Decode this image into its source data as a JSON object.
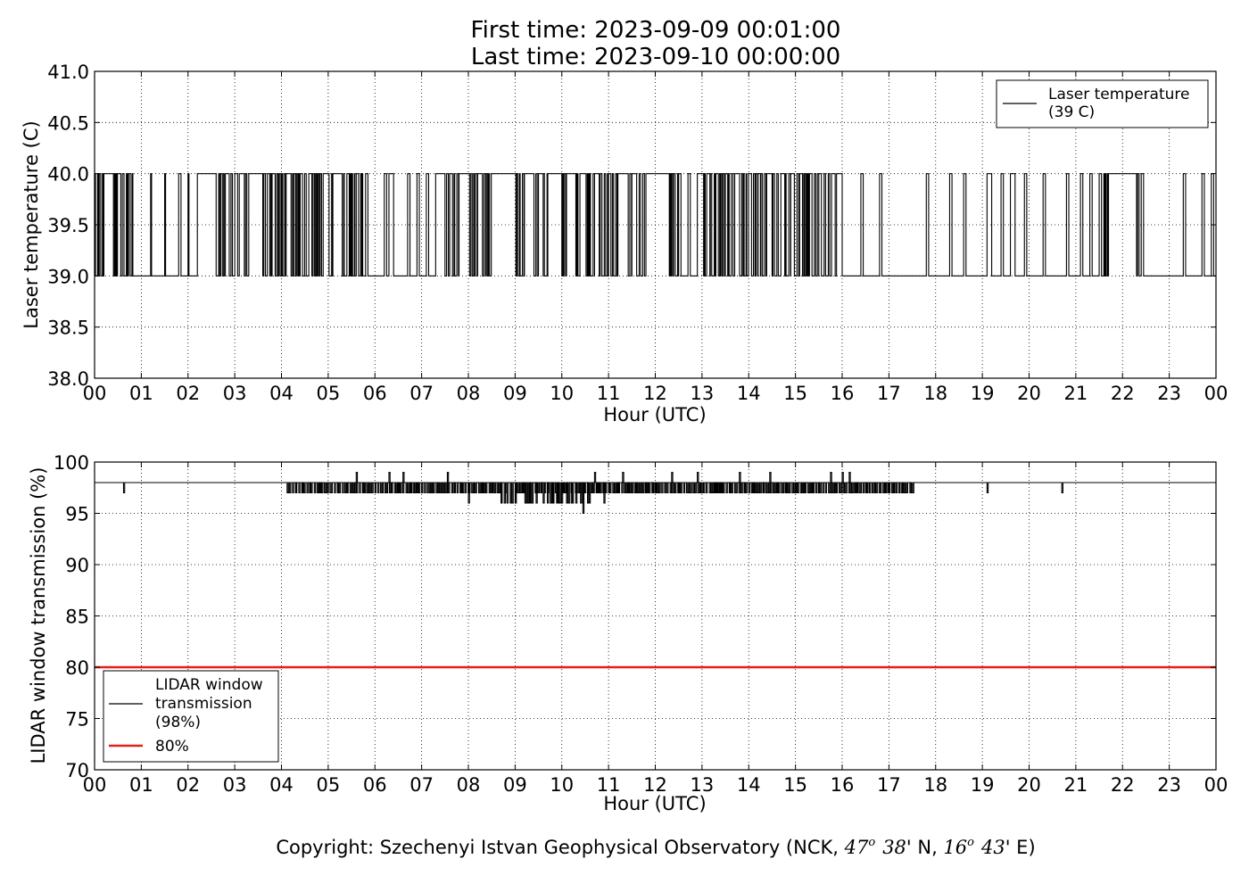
{
  "header": {
    "first_time": "First time: 2023-09-09 00:01:00",
    "last_time": "Last time: 2023-09-10 00:00:00"
  },
  "copyright": {
    "prefix": "Copyright: Szechenyi Istvan Geophysical Observatory (NCK, ",
    "lat_deg": "47",
    "lat_min": "38",
    "lat_suffix": "' N, ",
    "lon_deg": "16",
    "lon_min": "43",
    "lon_suffix": "' E)",
    "degree_mark": "o"
  },
  "chart_data": [
    {
      "type": "line",
      "xlabel": "Hour (UTC)",
      "ylabel": "Laser temperature (C)",
      "xlim": [
        0,
        24
      ],
      "ylim": [
        38.0,
        41.0
      ],
      "x_tick_labels": [
        "00",
        "01",
        "02",
        "03",
        "04",
        "05",
        "06",
        "07",
        "08",
        "09",
        "10",
        "11",
        "12",
        "13",
        "14",
        "15",
        "16",
        "17",
        "18",
        "19",
        "20",
        "21",
        "22",
        "23",
        "00"
      ],
      "y_tick_labels": [
        "38.0",
        "38.5",
        "39.0",
        "39.5",
        "40.0",
        "40.5",
        "41.0"
      ],
      "grid": true,
      "legend_position": "top-right",
      "series": [
        {
          "name": "Laser temperature\n(39 C)",
          "legend_lines": [
            "Laser temperature",
            "(39 C)"
          ],
          "color": "#000000",
          "description_levels": [
            39.0,
            40.0
          ],
          "segments_at_40": [
            [
              0.0,
              0.02
            ],
            [
              0.1,
              0.12
            ],
            [
              0.2,
              0.4
            ],
            [
              0.45,
              0.47
            ],
            [
              0.5,
              0.55
            ],
            [
              0.6,
              0.62
            ],
            [
              0.7,
              0.72
            ],
            [
              0.8,
              0.82
            ],
            [
              1.2,
              1.22
            ],
            [
              1.5,
              1.52
            ],
            [
              1.8,
              1.85
            ],
            [
              2.0,
              2.02
            ],
            [
              2.2,
              2.6
            ],
            [
              2.7,
              2.72
            ],
            [
              2.8,
              2.85
            ],
            [
              3.0,
              3.05
            ],
            [
              3.1,
              3.2
            ],
            [
              3.3,
              3.6
            ],
            [
              3.7,
              3.75
            ],
            [
              3.8,
              3.85
            ],
            [
              4.1,
              4.2
            ],
            [
              4.4,
              4.45
            ],
            [
              4.6,
              4.65
            ],
            [
              4.9,
              5.0
            ],
            [
              5.1,
              5.3
            ],
            [
              5.4,
              5.45
            ],
            [
              5.6,
              5.65
            ],
            [
              5.8,
              5.85
            ],
            [
              6.2,
              6.25
            ],
            [
              6.3,
              6.4
            ],
            [
              6.7,
              6.75
            ],
            [
              6.9,
              6.95
            ],
            [
              7.1,
              7.15
            ],
            [
              7.3,
              7.5
            ],
            [
              7.6,
              7.65
            ],
            [
              7.8,
              8.0
            ],
            [
              8.2,
              8.3
            ],
            [
              8.5,
              9.0
            ],
            [
              9.2,
              9.4
            ],
            [
              9.5,
              9.6
            ],
            [
              9.7,
              10.0
            ],
            [
              10.1,
              10.3
            ],
            [
              10.4,
              10.5
            ],
            [
              10.7,
              10.8
            ],
            [
              11.0,
              11.05
            ],
            [
              11.2,
              11.4
            ],
            [
              11.5,
              11.6
            ],
            [
              11.8,
              12.3
            ],
            [
              12.5,
              12.55
            ],
            [
              12.7,
              12.75
            ],
            [
              12.9,
              13.0
            ],
            [
              13.1,
              13.15
            ],
            [
              13.3,
              13.35
            ],
            [
              13.5,
              13.55
            ],
            [
              13.7,
              13.8
            ],
            [
              14.0,
              14.05
            ],
            [
              14.2,
              14.25
            ],
            [
              14.4,
              14.5
            ],
            [
              14.7,
              14.75
            ],
            [
              14.9,
              14.95
            ],
            [
              15.1,
              15.15
            ],
            [
              15.3,
              15.35
            ],
            [
              15.5,
              15.55
            ],
            [
              15.8,
              15.85
            ],
            [
              15.9,
              16.0
            ],
            [
              16.4,
              16.45
            ],
            [
              16.8,
              16.85
            ],
            [
              17.8,
              17.85
            ],
            [
              18.3,
              18.35
            ],
            [
              18.6,
              18.65
            ],
            [
              19.1,
              19.2
            ],
            [
              19.4,
              19.45
            ],
            [
              19.6,
              19.7
            ],
            [
              19.9,
              19.95
            ],
            [
              20.3,
              20.35
            ],
            [
              20.8,
              20.85
            ],
            [
              21.1,
              21.15
            ],
            [
              21.3,
              21.35
            ],
            [
              21.5,
              21.55
            ],
            [
              21.7,
              22.3
            ],
            [
              22.4,
              22.45
            ],
            [
              23.3,
              23.35
            ],
            [
              23.7,
              23.75
            ],
            [
              23.9,
              23.95
            ]
          ],
          "dense_toggle_ranges": [
            [
              0.0,
              0.8
            ],
            [
              2.5,
              5.8
            ],
            [
              7.4,
              12.5
            ],
            [
              13.0,
              16.0
            ],
            [
              21.6,
              22.4
            ]
          ]
        }
      ]
    },
    {
      "type": "line",
      "xlabel": "Hour (UTC)",
      "ylabel": "LIDAR window transmission (%)",
      "xlim": [
        0,
        24
      ],
      "ylim": [
        70,
        100
      ],
      "x_tick_labels": [
        "00",
        "01",
        "02",
        "03",
        "04",
        "05",
        "06",
        "07",
        "08",
        "09",
        "10",
        "11",
        "12",
        "13",
        "14",
        "15",
        "16",
        "17",
        "18",
        "19",
        "20",
        "21",
        "22",
        "23",
        "00"
      ],
      "y_tick_labels": [
        "70",
        "75",
        "80",
        "85",
        "90",
        "95",
        "100"
      ],
      "grid": true,
      "legend_position": "lower-left",
      "series": [
        {
          "name": "LIDAR window\ntransmission\n(98%)",
          "legend_lines": [
            "LIDAR window",
            "transmission",
            "(98%)"
          ],
          "color": "#000000",
          "baseline": 98,
          "dips": [
            [
              0.62,
              97
            ],
            [
              4.15,
              97
            ],
            [
              4.3,
              97
            ],
            [
              4.45,
              97
            ],
            [
              4.6,
              97
            ],
            [
              4.8,
              97
            ],
            [
              4.95,
              97
            ],
            [
              5.2,
              97
            ],
            [
              5.4,
              97
            ],
            [
              5.6,
              99
            ],
            [
              5.75,
              97
            ],
            [
              5.85,
              97
            ],
            [
              6.0,
              97
            ],
            [
              6.15,
              97
            ],
            [
              6.3,
              99
            ],
            [
              6.35,
              97
            ],
            [
              6.5,
              97
            ],
            [
              6.6,
              99
            ],
            [
              6.75,
              97
            ],
            [
              6.9,
              97
            ],
            [
              7.0,
              97
            ],
            [
              7.2,
              97
            ],
            [
              7.35,
              97
            ],
            [
              7.5,
              97
            ],
            [
              7.55,
              99
            ],
            [
              7.7,
              97
            ],
            [
              7.85,
              97
            ],
            [
              8.0,
              96
            ],
            [
              8.1,
              97
            ],
            [
              8.3,
              97
            ],
            [
              8.5,
              97
            ],
            [
              8.7,
              96
            ],
            [
              8.8,
              97
            ],
            [
              9.0,
              96
            ],
            [
              9.15,
              97
            ],
            [
              9.3,
              96
            ],
            [
              9.45,
              96
            ],
            [
              9.55,
              97
            ],
            [
              9.6,
              96
            ],
            [
              9.7,
              97
            ],
            [
              9.8,
              96
            ],
            [
              9.9,
              96
            ],
            [
              10.0,
              97
            ],
            [
              10.1,
              96
            ],
            [
              10.2,
              96
            ],
            [
              10.3,
              96
            ],
            [
              10.4,
              96
            ],
            [
              10.45,
              95
            ],
            [
              10.55,
              96
            ],
            [
              10.65,
              97
            ],
            [
              10.7,
              99
            ],
            [
              10.8,
              97
            ],
            [
              10.9,
              96
            ],
            [
              11.0,
              97
            ],
            [
              11.2,
              97
            ],
            [
              11.3,
              99
            ],
            [
              11.4,
              97
            ],
            [
              11.6,
              97
            ],
            [
              11.8,
              97
            ],
            [
              12.0,
              97
            ],
            [
              12.2,
              97
            ],
            [
              12.35,
              99
            ],
            [
              12.5,
              97
            ],
            [
              12.7,
              97
            ],
            [
              12.9,
              99
            ],
            [
              13.0,
              97
            ],
            [
              13.2,
              97
            ],
            [
              13.4,
              97
            ],
            [
              13.6,
              97
            ],
            [
              13.8,
              99
            ],
            [
              13.9,
              97
            ],
            [
              14.1,
              97
            ],
            [
              14.3,
              97
            ],
            [
              14.45,
              99
            ],
            [
              14.6,
              97
            ],
            [
              14.8,
              97
            ],
            [
              15.0,
              97
            ],
            [
              15.2,
              97
            ],
            [
              15.35,
              97
            ],
            [
              15.5,
              97
            ],
            [
              15.75,
              99
            ],
            [
              15.85,
              97
            ],
            [
              16.0,
              99
            ],
            [
              16.15,
              99
            ],
            [
              16.3,
              97
            ],
            [
              16.5,
              97
            ],
            [
              16.7,
              97
            ],
            [
              16.9,
              97
            ],
            [
              17.1,
              97
            ],
            [
              17.45,
              97
            ],
            [
              19.1,
              97
            ],
            [
              20.7,
              97
            ]
          ],
          "active_range": [
            4.1,
            17.5
          ]
        },
        {
          "name": "80%",
          "legend_lines": [
            "80%"
          ],
          "color": "#e0201b",
          "constant": 80
        }
      ]
    }
  ]
}
